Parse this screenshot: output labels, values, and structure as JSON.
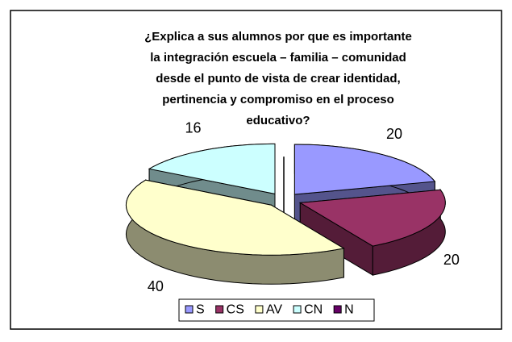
{
  "chart_data": {
    "type": "pie3d",
    "title": [
      "¿Explica a sus alumnos por que es importante",
      "la integración escuela – familia – comunidad",
      "desde el punto de vista de crear identidad,",
      "pertinencia y compromiso en el proceso",
      "educativo?"
    ],
    "categories": [
      "S",
      "CS",
      "AV",
      "CN",
      "N"
    ],
    "values": [
      20,
      20,
      40,
      16,
      0
    ],
    "colors": [
      "#9999ff",
      "#993366",
      "#ffffcc",
      "#ccffff",
      "#660066"
    ],
    "legend": "bottom"
  }
}
